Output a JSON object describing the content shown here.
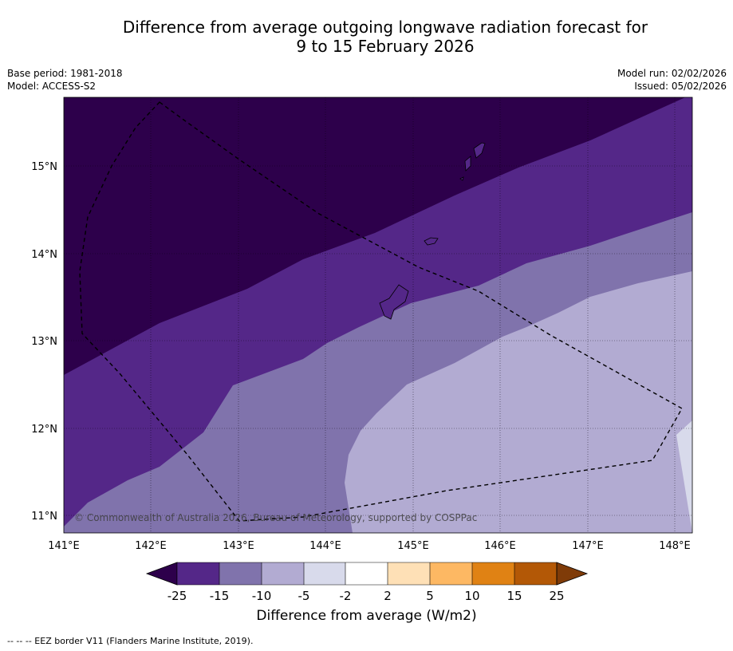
{
  "title": {
    "line1": "Difference from average outgoing longwave radiation forecast for",
    "line2": "9 to 15 February 2026"
  },
  "meta": {
    "base_period": "Base period: 1981-2018",
    "model": "Model: ACCESS-S2",
    "model_run": "Model run: 02/02/2026",
    "issued": "Issued: 05/02/2026"
  },
  "map": {
    "lat_labels": [
      "15°N",
      "14°N",
      "13°N",
      "12°N",
      "11°N"
    ],
    "lon_labels": [
      "141°E",
      "142°E",
      "143°E",
      "144°E",
      "145°E",
      "146°E",
      "147°E",
      "148°E"
    ],
    "copyright": "© Commonwealth of Australia 2026, Bureau of Meteorology, supported by COSPPac"
  },
  "colorbar": {
    "ticks": [
      "-25",
      "-15",
      "-10",
      "-5",
      "-2",
      "2",
      "5",
      "10",
      "15",
      "25"
    ],
    "colors": [
      "#2d004b",
      "#542788",
      "#8073ac",
      "#b2abd2",
      "#d8daeb",
      "#ffffff",
      "#fee0b6",
      "#fdb863",
      "#e08214",
      "#b35806",
      "#7f3b08"
    ],
    "label": "Difference from average (W/m2)"
  },
  "footnote": "--  --  -- EEZ border V11 (Flanders Marine Institute, 2019)."
}
